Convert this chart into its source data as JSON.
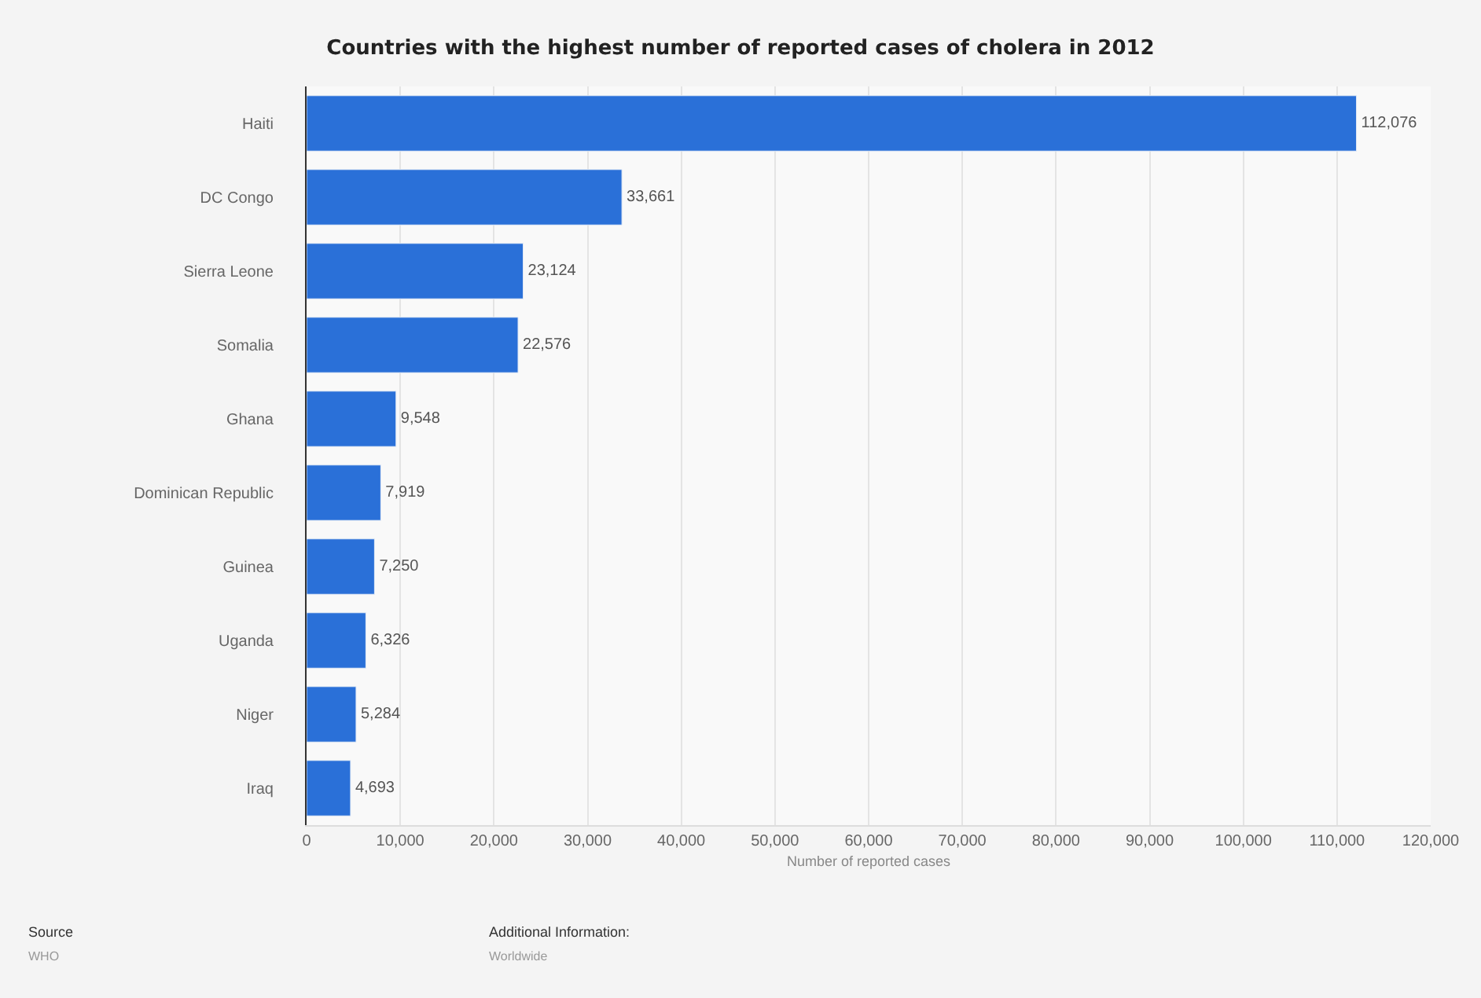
{
  "chart_data": {
    "type": "bar",
    "orientation": "horizontal",
    "title": "Countries with the highest number of reported cases of cholera in 2012",
    "xlabel": "Number of reported cases",
    "categories": [
      "Haiti",
      "DC Congo",
      "Sierra Leone",
      "Somalia",
      "Ghana",
      "Dominican Republic",
      "Guinea",
      "Uganda",
      "Niger",
      "Iraq"
    ],
    "values": [
      112076,
      33661,
      23124,
      22576,
      9548,
      7919,
      7250,
      6326,
      5284,
      4693
    ],
    "value_labels": [
      "112,076",
      "33,661",
      "23,124",
      "22,576",
      "9,548",
      "7,919",
      "7,250",
      "6,326",
      "5,284",
      "4,693"
    ],
    "color": "#2a70d8",
    "xlim": [
      0,
      120000
    ],
    "xticks": [
      0,
      {
        "value": 10000,
        "label": "10,000"
      },
      {
        "value": 20000,
        "label": "20,000"
      },
      {
        "value": 30000,
        "label": "30,000"
      },
      {
        "value": 40000,
        "label": "40,000"
      },
      {
        "value": 50000,
        "label": "50,000"
      },
      {
        "value": 60000,
        "label": "60,000"
      },
      {
        "value": 70000,
        "label": "70,000"
      },
      {
        "value": 80000,
        "label": "80,000"
      },
      {
        "value": 90000,
        "label": "90,000"
      },
      {
        "value": 100000,
        "label": "100,000"
      },
      {
        "value": 110000,
        "label": "110,000"
      },
      {
        "value": 120000,
        "label": "120,000"
      }
    ],
    "grid": "x",
    "annotations": [
      "Source",
      "WHO",
      "Additional Information:",
      "Worldwide"
    ]
  }
}
